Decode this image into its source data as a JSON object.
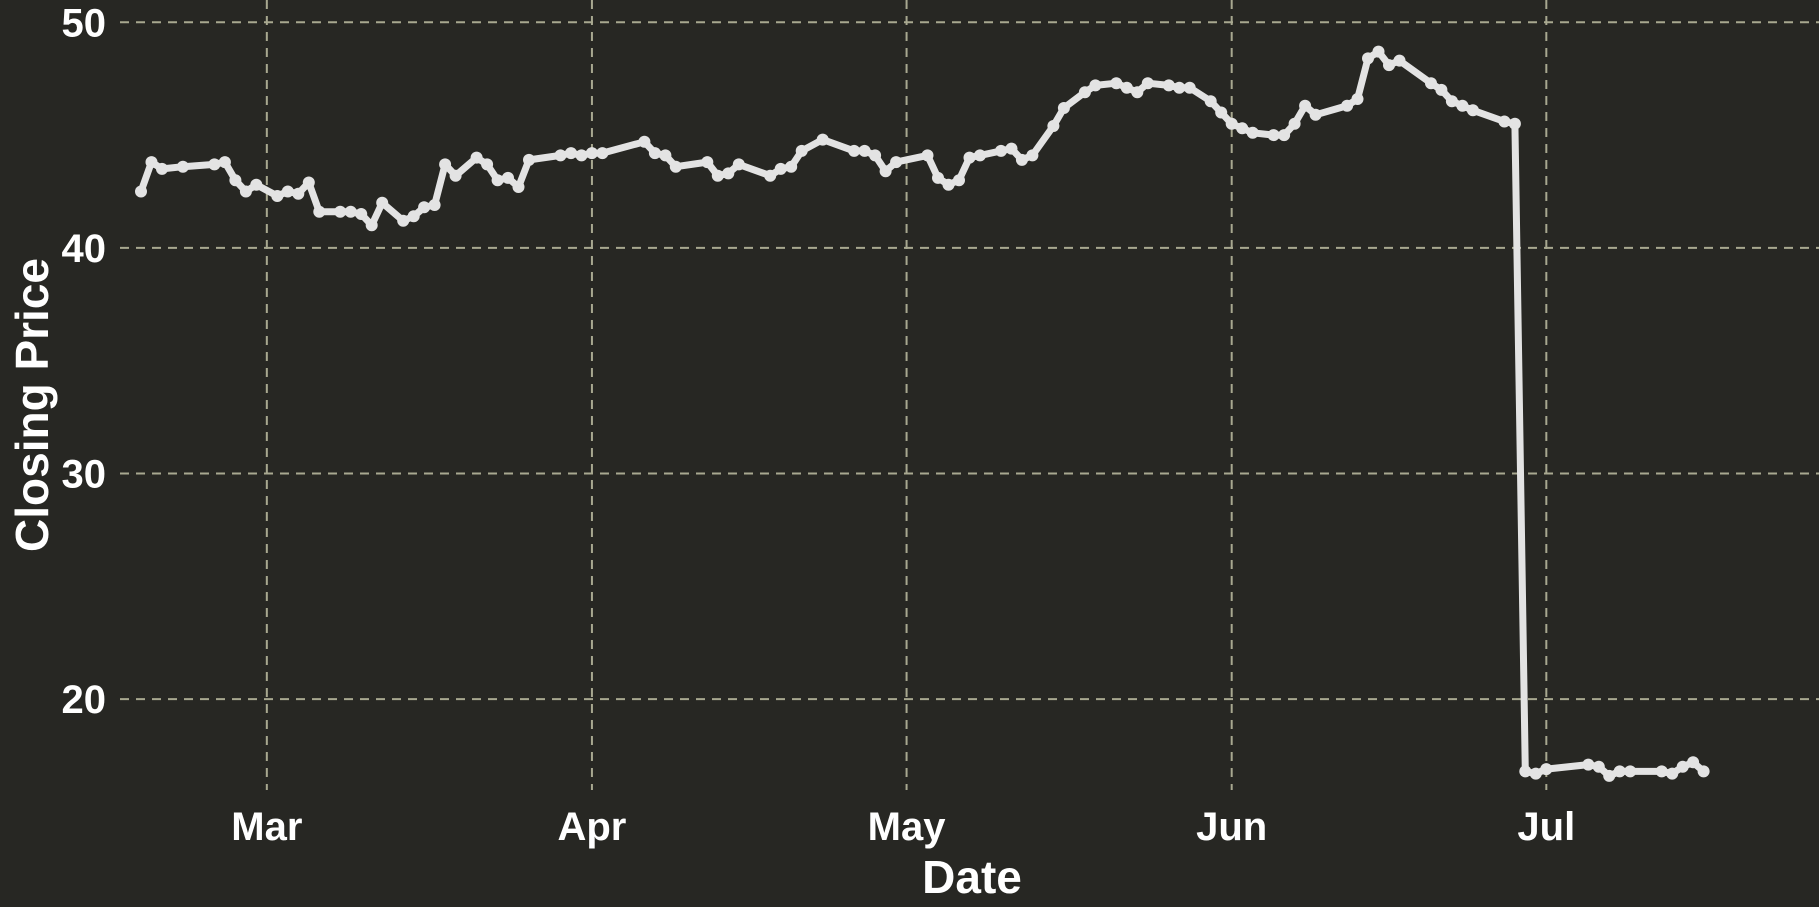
{
  "chart_data": {
    "type": "line",
    "title": "",
    "xlabel": "Date",
    "ylabel": "Closing Price",
    "x_tick_labels": [
      "Mar",
      "Apr",
      "May",
      "Jun",
      "Jul"
    ],
    "x_tick_dates": [
      "2016-03-01",
      "2016-04-01",
      "2016-05-01",
      "2016-06-01",
      "2016-07-01"
    ],
    "y_ticks": [
      20,
      30,
      40,
      50
    ],
    "xlim": [
      "2016-02-16",
      "2016-07-27"
    ],
    "ylim": [
      14.6,
      50.1
    ],
    "grid": true,
    "legend": "none",
    "colors": {
      "background": "#272723",
      "line": "#e3e3e3",
      "grid": "#a8a890",
      "text": "#ffffff"
    },
    "series": [
      {
        "x": [
          "2016-02-18",
          "2016-02-19",
          "2016-02-20",
          "2016-02-22",
          "2016-02-25",
          "2016-02-26",
          "2016-02-27",
          "2016-02-28",
          "2016-02-29",
          "2016-03-02",
          "2016-03-03",
          "2016-03-04",
          "2016-03-05",
          "2016-03-06",
          "2016-03-08",
          "2016-03-09",
          "2016-03-10",
          "2016-03-11",
          "2016-03-12",
          "2016-03-14",
          "2016-03-15",
          "2016-03-16",
          "2016-03-17",
          "2016-03-18",
          "2016-03-19",
          "2016-03-21",
          "2016-03-22",
          "2016-03-23",
          "2016-03-24",
          "2016-03-25",
          "2016-03-26",
          "2016-03-29",
          "2016-03-30",
          "2016-03-31",
          "2016-04-01",
          "2016-04-02",
          "2016-04-06",
          "2016-04-07",
          "2016-04-08",
          "2016-04-09",
          "2016-04-12",
          "2016-04-13",
          "2016-04-14",
          "2016-04-15",
          "2016-04-18",
          "2016-04-19",
          "2016-04-20",
          "2016-04-21",
          "2016-04-23",
          "2016-04-26",
          "2016-04-27",
          "2016-04-28",
          "2016-04-29",
          "2016-04-30",
          "2016-05-03",
          "2016-05-04",
          "2016-05-05",
          "2016-05-06",
          "2016-05-07",
          "2016-05-08",
          "2016-05-10",
          "2016-05-11",
          "2016-05-12",
          "2016-05-13",
          "2016-05-15",
          "2016-05-16",
          "2016-05-18",
          "2016-05-19",
          "2016-05-21",
          "2016-05-22",
          "2016-05-23",
          "2016-05-24",
          "2016-05-26",
          "2016-05-27",
          "2016-05-28",
          "2016-05-30",
          "2016-05-31",
          "2016-06-01",
          "2016-06-02",
          "2016-06-03",
          "2016-06-05",
          "2016-06-06",
          "2016-06-07",
          "2016-06-08",
          "2016-06-09",
          "2016-06-12",
          "2016-06-13",
          "2016-06-14",
          "2016-06-15",
          "2016-06-16",
          "2016-06-17",
          "2016-06-20",
          "2016-06-21",
          "2016-06-22",
          "2016-06-23",
          "2016-06-24",
          "2016-06-27",
          "2016-06-28",
          "2016-06-29",
          "2016-06-30",
          "2016-07-01",
          "2016-07-05",
          "2016-07-06",
          "2016-07-07",
          "2016-07-08",
          "2016-07-09",
          "2016-07-12",
          "2016-07-13",
          "2016-07-14",
          "2016-07-15",
          "2016-07-16"
        ],
        "y": [
          42.5,
          43.8,
          43.5,
          43.6,
          43.7,
          43.8,
          43.0,
          42.5,
          42.8,
          42.3,
          42.5,
          42.4,
          42.9,
          41.6,
          41.6,
          41.6,
          41.5,
          41.0,
          42.0,
          41.2,
          41.4,
          41.8,
          41.9,
          43.7,
          43.2,
          44.0,
          43.7,
          43.0,
          43.1,
          42.7,
          43.9,
          44.1,
          44.2,
          44.1,
          44.2,
          44.2,
          44.7,
          44.2,
          44.1,
          43.6,
          43.8,
          43.2,
          43.3,
          43.7,
          43.2,
          43.5,
          43.6,
          44.3,
          44.8,
          44.3,
          44.3,
          44.1,
          43.4,
          43.8,
          44.1,
          43.1,
          42.8,
          43.0,
          44.0,
          44.1,
          44.3,
          44.4,
          43.9,
          44.1,
          45.4,
          46.2,
          46.9,
          47.2,
          47.3,
          47.1,
          46.9,
          47.3,
          47.2,
          47.1,
          47.1,
          46.5,
          46.0,
          45.5,
          45.3,
          45.1,
          45.0,
          45.0,
          45.5,
          46.3,
          45.9,
          46.3,
          46.6,
          48.4,
          48.7,
          48.1,
          48.3,
          47.3,
          47.0,
          46.5,
          46.3,
          46.1,
          45.6,
          45.5,
          16.8,
          16.7,
          16.9,
          17.1,
          17.0,
          16.6,
          16.8,
          16.8,
          16.8,
          16.7,
          17.0,
          17.2,
          16.8
        ]
      }
    ]
  }
}
